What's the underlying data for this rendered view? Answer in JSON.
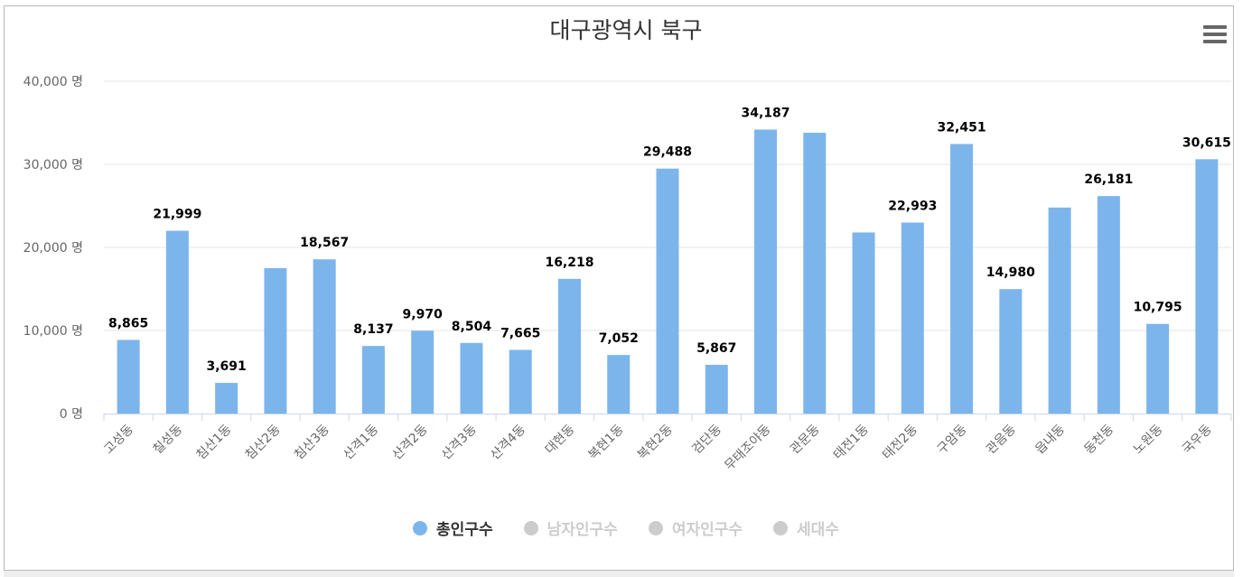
{
  "colors": {
    "bar": "#7cb5ec",
    "inactive": "#cccccc",
    "grid": "#e6e6e6",
    "axis_text": "#666666",
    "label_text": "#000000"
  },
  "menu_icon": "hamburger-menu-icon",
  "legend": [
    {
      "label": "총인구수",
      "active": true,
      "color": "#7cb5ec"
    },
    {
      "label": "남자인구수",
      "active": false,
      "color": "#cccccc"
    },
    {
      "label": "여자인구수",
      "active": false,
      "color": "#cccccc"
    },
    {
      "label": "세대수",
      "active": false,
      "color": "#cccccc"
    }
  ],
  "chart_data": {
    "type": "bar",
    "title": "대구광역시 북구",
    "xlabel": "",
    "ylabel": "",
    "ylim": [
      0,
      40000
    ],
    "y_ticks": [
      0,
      10000,
      20000,
      30000,
      40000
    ],
    "y_tick_labels": [
      "0 명",
      "10,000 명",
      "20,000 명",
      "30,000 명",
      "40,000 명"
    ],
    "grid": true,
    "legend_position": "bottom",
    "categories": [
      "고성동",
      "칠성동",
      "침산1동",
      "침산2동",
      "침산3동",
      "산격1동",
      "산격2동",
      "산격3동",
      "산격4동",
      "대현동",
      "복현1동",
      "복현2동",
      "검단동",
      "무태조야동",
      "관문동",
      "태전1동",
      "태전2동",
      "구암동",
      "관음동",
      "읍내동",
      "동천동",
      "노원동",
      "국우동"
    ],
    "series": [
      {
        "name": "총인구수",
        "values": [
          8865,
          21999,
          3691,
          17500,
          18567,
          8137,
          9970,
          8504,
          7665,
          16218,
          7052,
          29488,
          5867,
          34187,
          33800,
          21800,
          22993,
          32451,
          14980,
          24800,
          26181,
          10795,
          30615
        ],
        "data_labels": [
          "8,865",
          "21,999",
          "3,691",
          "",
          "18,567",
          "8,137",
          "9,970",
          "8,504",
          "7,665",
          "16,218",
          "7,052",
          "29,488",
          "5,867",
          "34,187",
          "",
          "",
          "22,993",
          "32,451",
          "14,980",
          "",
          "26,181",
          "10,795",
          "30,615"
        ]
      }
    ]
  }
}
